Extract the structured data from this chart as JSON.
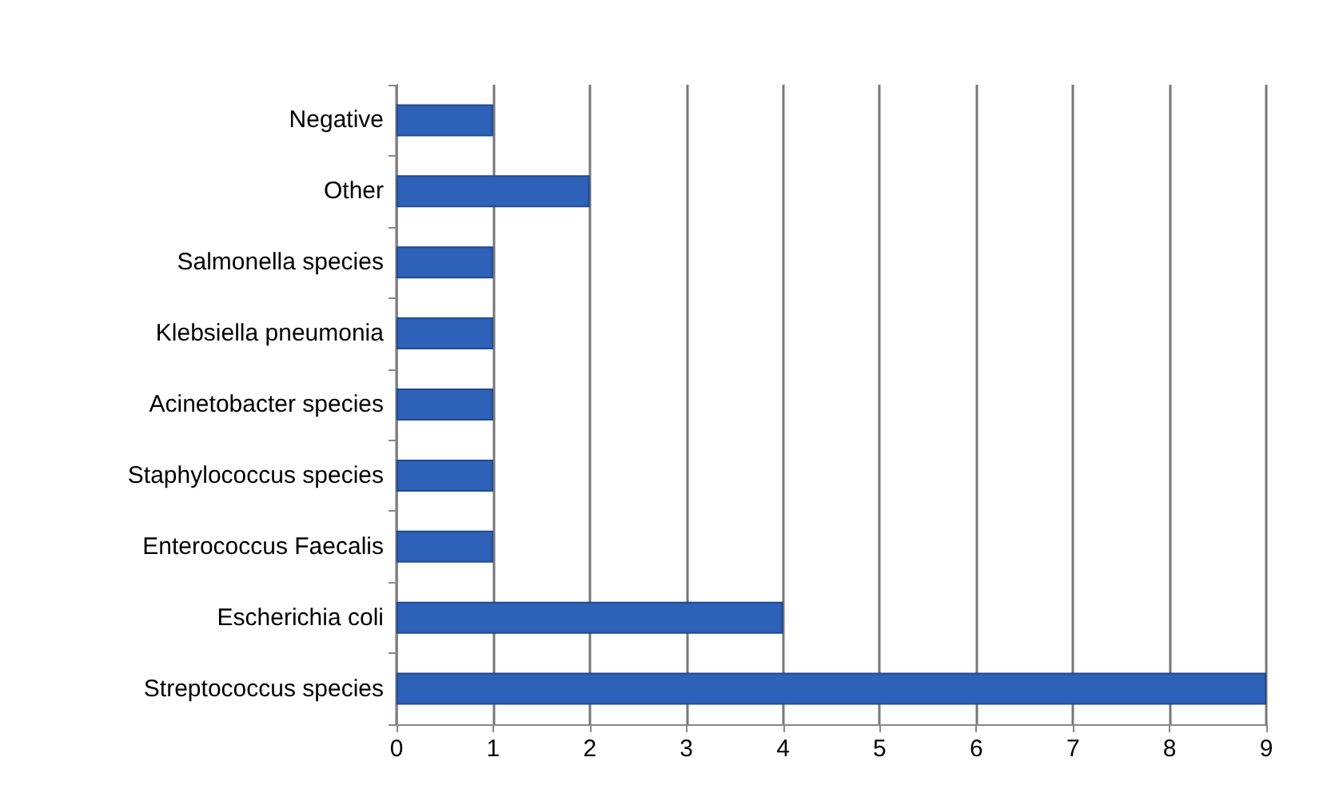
{
  "chart_data": {
    "type": "bar",
    "orientation": "horizontal",
    "categories": [
      "Negative",
      "Other",
      "Salmonella species",
      "Klebsiella pneumonia",
      "Acinetobacter species",
      "Staphylococcus species",
      "Enterococcus Faecalis",
      "Escherichia coli",
      "Streptococcus species"
    ],
    "values": [
      1,
      2,
      1,
      1,
      1,
      1,
      1,
      4,
      9
    ],
    "color": "#2e62b8",
    "xlim": [
      0,
      9
    ],
    "xticks": [
      0,
      1,
      2,
      3,
      4,
      5,
      6,
      7,
      8,
      9
    ],
    "grid": "x"
  }
}
